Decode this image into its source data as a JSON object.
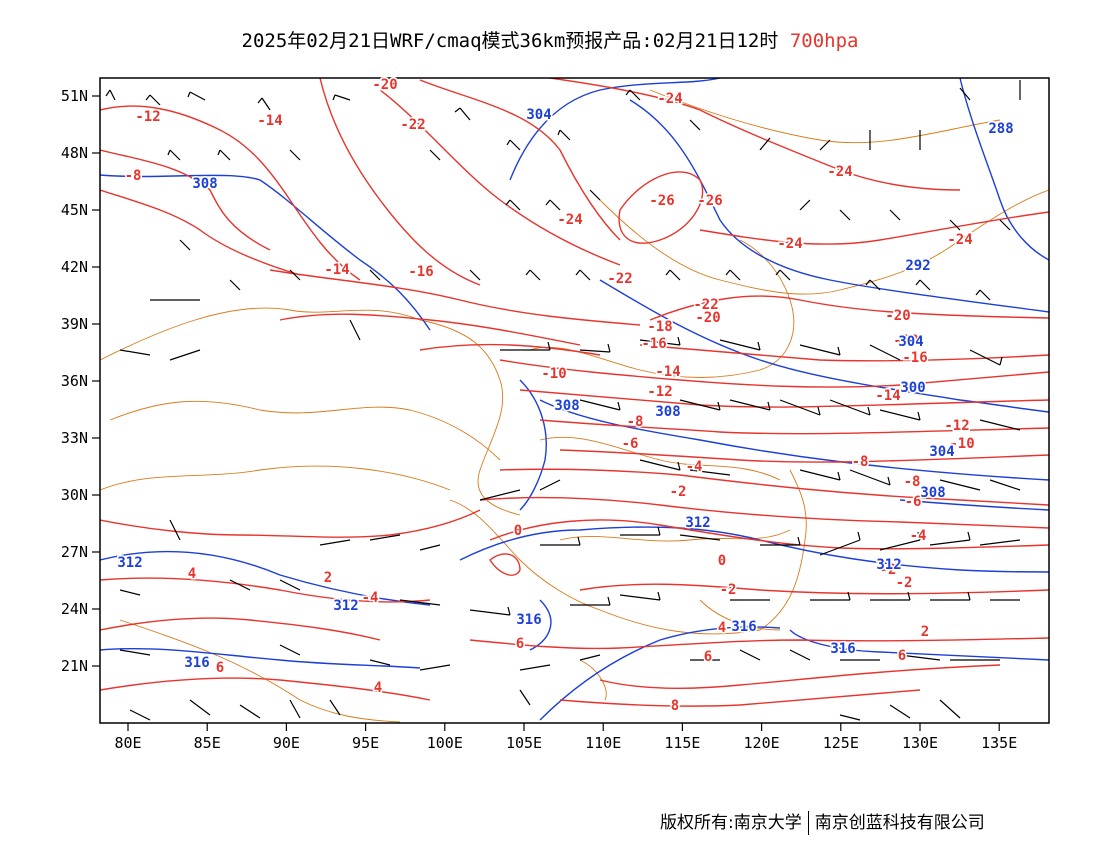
{
  "title": {
    "main": "2025年02月21日WRF/cmaq模式36km预报产品:02月21日12时",
    "level": "700hpa"
  },
  "footer": {
    "copyright": "版权所有:南京大学",
    "company": "南京创蓝科技有限公司"
  },
  "axes": {
    "lon_ticks": [
      "80E",
      "85E",
      "90E",
      "95E",
      "100E",
      "105E",
      "110E",
      "115E",
      "120E",
      "125E",
      "130E",
      "135E"
    ],
    "lat_ticks": [
      "21N",
      "24N",
      "27N",
      "30N",
      "33N",
      "36N",
      "39N",
      "42N",
      "45N",
      "48N",
      "51N"
    ]
  },
  "temperature_labels": [
    "-20",
    "-22",
    "-24",
    "-24",
    "-26",
    "-26",
    "-24",
    "-24",
    "-24",
    "-12",
    "-14",
    "-8",
    "-14",
    "-16",
    "-22",
    "-18",
    "-16",
    "-20",
    "-22",
    "-20",
    "-18",
    "-16",
    "-14",
    "-12",
    "-10",
    "-14",
    "-12",
    "-10",
    "-8",
    "-8",
    "-6",
    "-8",
    "-4",
    "-2",
    "-6",
    "-4",
    "0",
    "0",
    "-2",
    "-2",
    "-2",
    "4",
    "2",
    "-4",
    "2",
    "4",
    "6",
    "6",
    "6",
    "6",
    "8",
    "4",
    "6"
  ],
  "height_labels": [
    "304",
    "288",
    "308",
    "292",
    "304",
    "300",
    "308",
    "308",
    "304",
    "308",
    "312",
    "312",
    "312",
    "312",
    "316",
    "316",
    "316",
    "316"
  ],
  "colors": {
    "temperature": "#e8342c",
    "height": "#1c3fd8",
    "boundary": "#d87a1a",
    "wind": "#000000",
    "frame": "#000000"
  }
}
